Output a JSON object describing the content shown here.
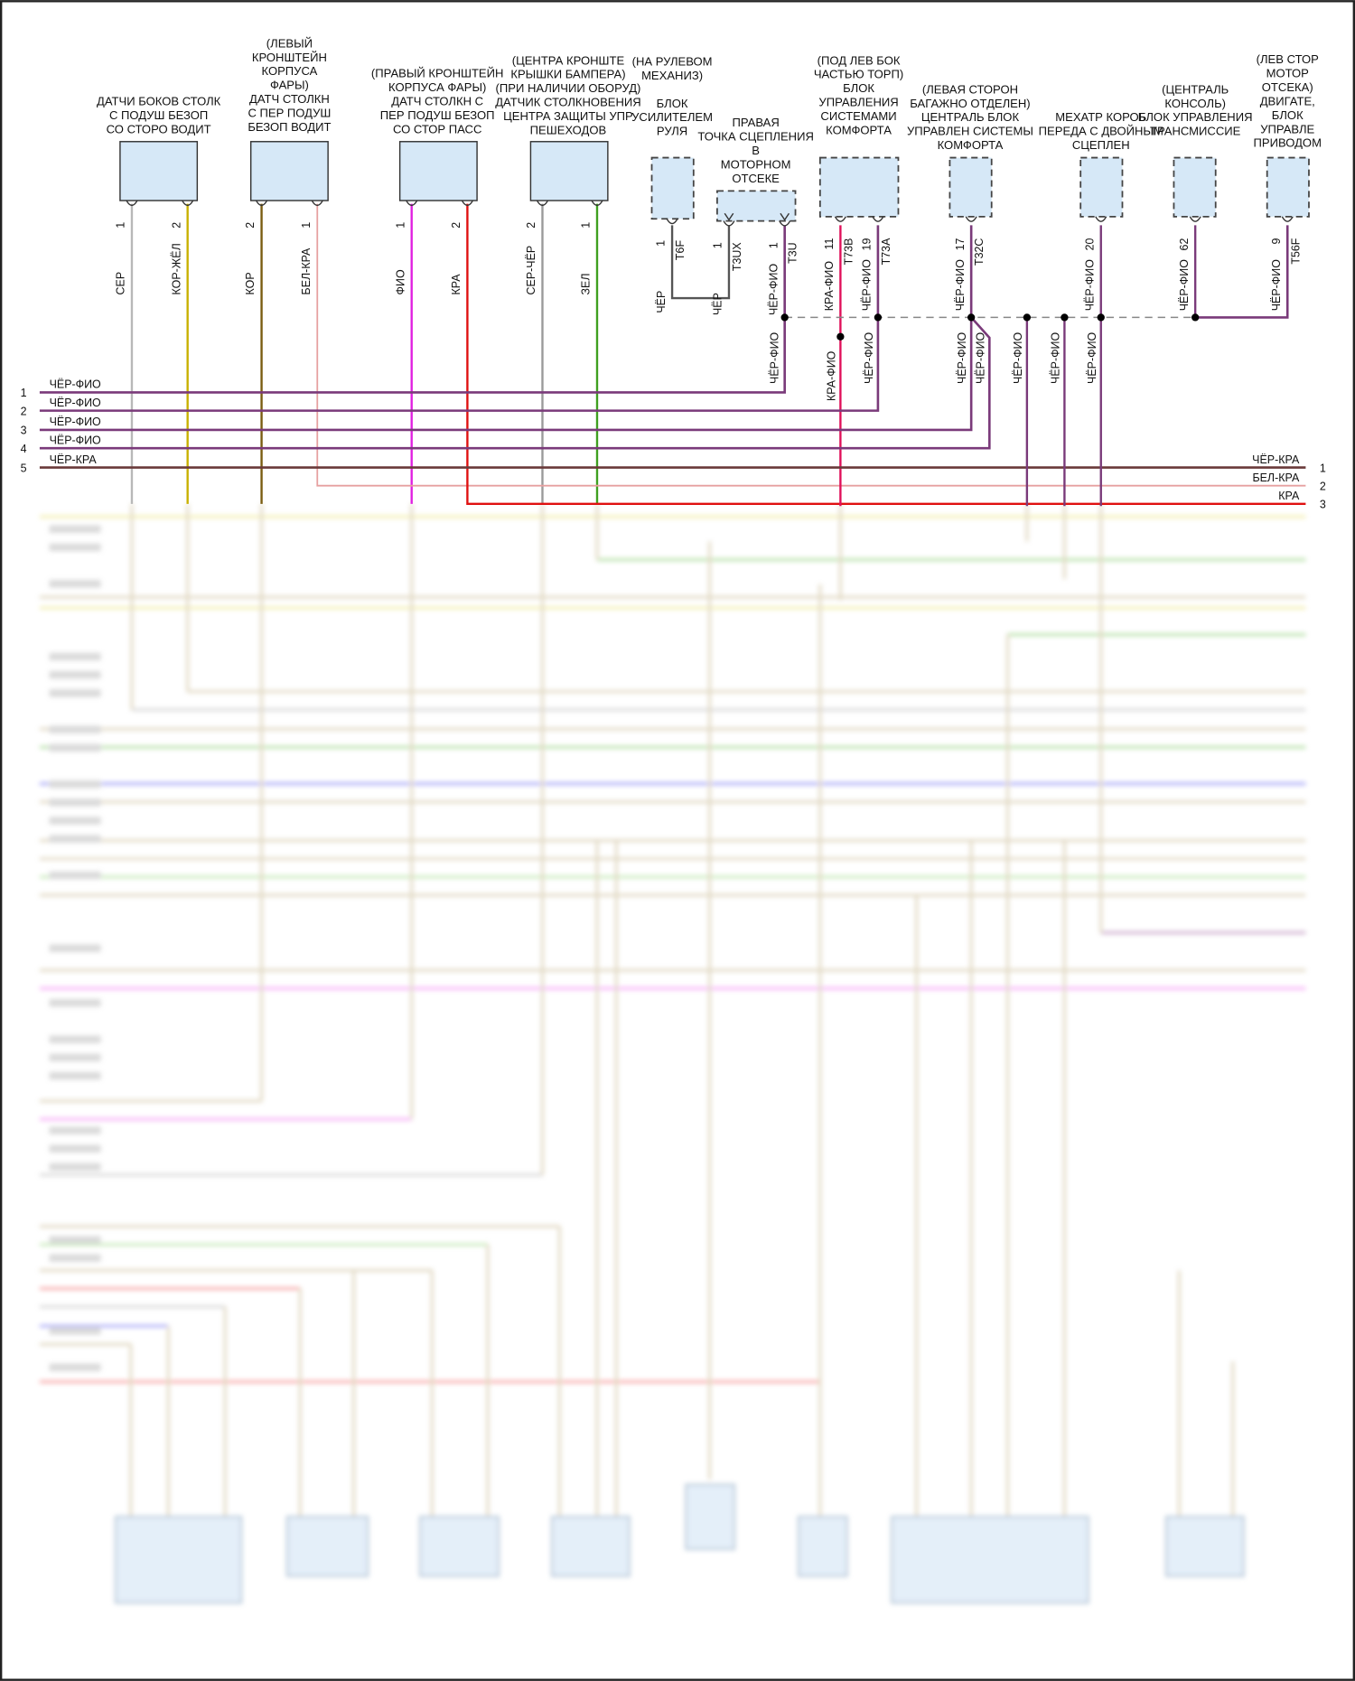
{
  "colors": {
    "СЕР": "#b8b8b8",
    "КОР-ЖЁЛ": "#c8b000",
    "КОР": "#7a5c10",
    "БЕЛ-КРА": "#e6a0a0",
    "ФИО": "#e020e0",
    "КРА": "#e01010",
    "СЕР-ЧЁР": "#9a9a9a",
    "ЗЕЛ": "#3fa020",
    "ЧЁР": "#555555",
    "ЧЁР-ФИО": "#7a3a7a",
    "КРА-ФИО": "#e0105a",
    "ЧЁР-КРА": "#6a3a3a",
    "box_fill": "#d6e8f7",
    "bus": "#888888"
  },
  "components": [
    {
      "label": [
        "ДАТЧИ БОКОВ СТОЛК",
        "С ПОДУШ БЕЗОП",
        "СО СТОРО ВОДИТ"
      ],
      "dashed": false,
      "pins": [
        {
          "num": "1",
          "wire": "СЕР",
          "connector": ""
        },
        {
          "num": "2",
          "wire": "КОР-ЖЁЛ",
          "connector": ""
        }
      ]
    },
    {
      "label": [
        "(ЛЕВЫЙ",
        "КРОНШТЕЙН",
        "КОРПУСА",
        "ФАРЫ)",
        "ДАТЧ СТОЛКН",
        "С ПЕР ПОДУШ",
        "БЕЗОП ВОДИТ"
      ],
      "dashed": false,
      "pins": [
        {
          "num": "2",
          "wire": "КОР",
          "connector": ""
        },
        {
          "num": "1",
          "wire": "БЕЛ-КРА",
          "connector": ""
        }
      ]
    },
    {
      "label": [
        "(ПРАВЫЙ КРОНШТЕЙН",
        "КОРПУСА ФАРЫ)",
        "ДАТЧ СТОЛКН С",
        "ПЕР ПОДУШ БЕЗОП",
        "СО СТОР ПАСС"
      ],
      "dashed": false,
      "pins": [
        {
          "num": "1",
          "wire": "ФИО",
          "connector": ""
        },
        {
          "num": "2",
          "wire": "КРА",
          "connector": ""
        }
      ]
    },
    {
      "label": [
        "(ЦЕНТРА КРОНШТЕ",
        "КРЫШКИ БАМПЕРА)",
        "(ПРИ НАЛИЧИИ ОБОРУД)",
        "ДАТЧИК СТОЛКНОВЕНИЯ",
        "ЦЕНТРА ЗАЩИТЫ УПР",
        "ПЕШЕХОДОВ"
      ],
      "dashed": false,
      "pins": [
        {
          "num": "2",
          "wire": "СЕР-ЧЁР",
          "connector": ""
        },
        {
          "num": "1",
          "wire": "ЗЕЛ",
          "connector": ""
        }
      ]
    },
    {
      "label": [
        "(НА РУЛЕВОМ",
        "МЕХАНИЗ)",
        "БЛОК",
        "УСИЛИТЕЛЕМ",
        "РУЛЯ"
      ],
      "dashed": true,
      "pins": [
        {
          "num": "1",
          "wire": "ЧЁР",
          "connector": "T6F"
        }
      ]
    },
    {
      "label": [
        "ПРАВАЯ",
        "ТОЧКА СЦЕПЛЕНИЯ",
        "В",
        "МОТОРНОМ",
        "ОТСЕКЕ"
      ],
      "dashed": true,
      "pins": [
        {
          "num": "1",
          "wire": "ЧЁР",
          "connector": "T3UX"
        },
        {
          "num": "1",
          "wire": "ЧЁР-ФИО",
          "connector": "T3U"
        }
      ]
    },
    {
      "label": [
        "(ПОД ЛЕВ БОК",
        "ЧАСТЬЮ ТОРП)",
        "БЛОК",
        "УПРАВЛЕНИЯ",
        "СИСТЕМАМИ",
        "КОМФОРТА"
      ],
      "dashed": true,
      "pins": [
        {
          "num": "11",
          "wire": "КРА-ФИО",
          "connector": "T73B"
        },
        {
          "num": "19",
          "wire": "ЧЁР-ФИО",
          "connector": "T73A"
        }
      ]
    },
    {
      "label": [
        "(ЛЕВАЯ СТОРОН",
        "БАГАЖНО ОТДЕЛЕН)",
        "ЦЕНТРАЛЬ БЛОК",
        "УПРАВЛЕН СИСТЕМЫ",
        "КОМФОРТА"
      ],
      "dashed": true,
      "pins": [
        {
          "num": "17",
          "wire": "ЧЁР-ФИО",
          "connector": "T32C"
        }
      ]
    },
    {
      "label": [
        "МЕХАТР КОРОБ",
        "ПЕРЕДА С ДВОЙНЫМ",
        "СЦЕПЛЕН"
      ],
      "dashed": true,
      "pins": [
        {
          "num": "20",
          "wire": "ЧЁР-ФИО",
          "connector": ""
        }
      ]
    },
    {
      "label": [
        "(ЦЕНТРАЛЬ",
        "КОНСОЛЬ)",
        "БЛОК УПРАВЛЕНИЯ",
        "ТРАНСМИССИЕ"
      ],
      "dashed": true,
      "pins": [
        {
          "num": "62",
          "wire": "ЧЁР-ФИО",
          "connector": ""
        }
      ]
    },
    {
      "label": [
        "(ЛЕВ СТОР",
        "МОТОР",
        "ОТСЕКА)",
        "ДВИГАТЕ,",
        "БЛОК",
        "УПРАВЛЕ",
        "ПРИВОДОМ"
      ],
      "dashed": true,
      "pins": [
        {
          "num": "9",
          "wire": "ЧЁР-ФИО",
          "connector": "T56F"
        }
      ]
    }
  ],
  "bus_drop_labels": [
    "ЧЁР-ФИО",
    "КРА-ФИО",
    "ЧЁР-ФИО",
    "ЧЁР-ФИО",
    "ЧЁР-ФИО",
    "ЧЁР-ФИО",
    "ЧЁР-ФИО",
    "ЧЁР-ФИО"
  ],
  "left_rows": [
    {
      "num": "1",
      "wire": "ЧЁР-ФИО"
    },
    {
      "num": "2",
      "wire": "ЧЁР-ФИО"
    },
    {
      "num": "3",
      "wire": "ЧЁР-ФИО"
    },
    {
      "num": "4",
      "wire": "ЧЁР-ФИО"
    },
    {
      "num": "5",
      "wire": "ЧЁР-КРА"
    }
  ],
  "right_rows": [
    {
      "num": "1",
      "wire": "ЧЁР-КРА"
    },
    {
      "num": "2",
      "wire": "БЕЛ-КРА"
    },
    {
      "num": "3",
      "wire": "КРА"
    }
  ]
}
